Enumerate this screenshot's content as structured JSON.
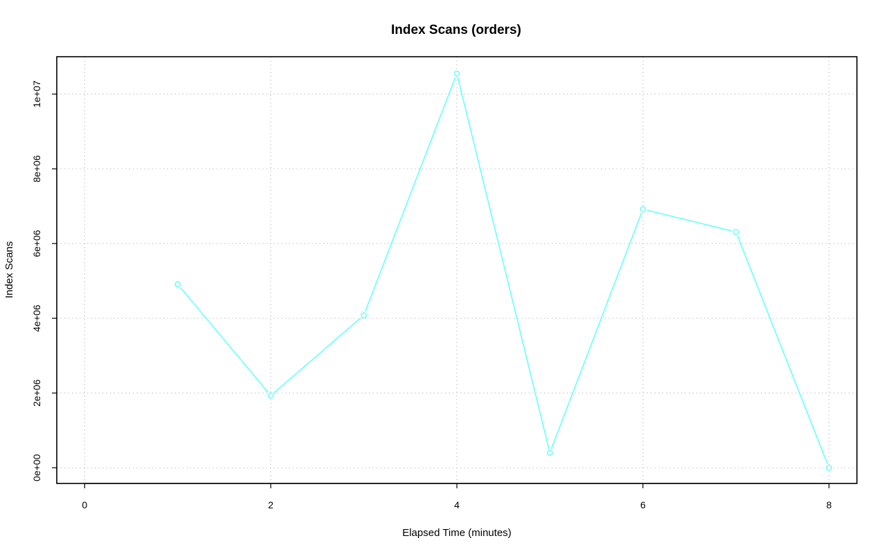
{
  "chart_data": {
    "type": "line",
    "title": "Index Scans (orders)",
    "xlabel": "Elapsed Time (minutes)",
    "ylabel": "Index Scans",
    "xlim": [
      -0.3,
      8.3
    ],
    "ylim": [
      -420000,
      11000000
    ],
    "x_ticks": [
      0,
      2,
      4,
      6,
      8
    ],
    "x_tick_labels": [
      "0",
      "2",
      "4",
      "6",
      "8"
    ],
    "y_ticks": [
      0,
      2000000,
      4000000,
      6000000,
      8000000,
      10000000
    ],
    "y_tick_labels": [
      "0e+00",
      "2e+06",
      "4e+06",
      "6e+06",
      "8e+06",
      "1e+07"
    ],
    "grid": true,
    "series": [
      {
        "color": "#66ffff",
        "x": [
          1,
          2,
          3,
          4,
          5,
          6,
          7,
          8
        ],
        "values": [
          4910000,
          1930000,
          4080000,
          10550000,
          400000,
          6920000,
          6310000,
          0
        ]
      }
    ]
  }
}
